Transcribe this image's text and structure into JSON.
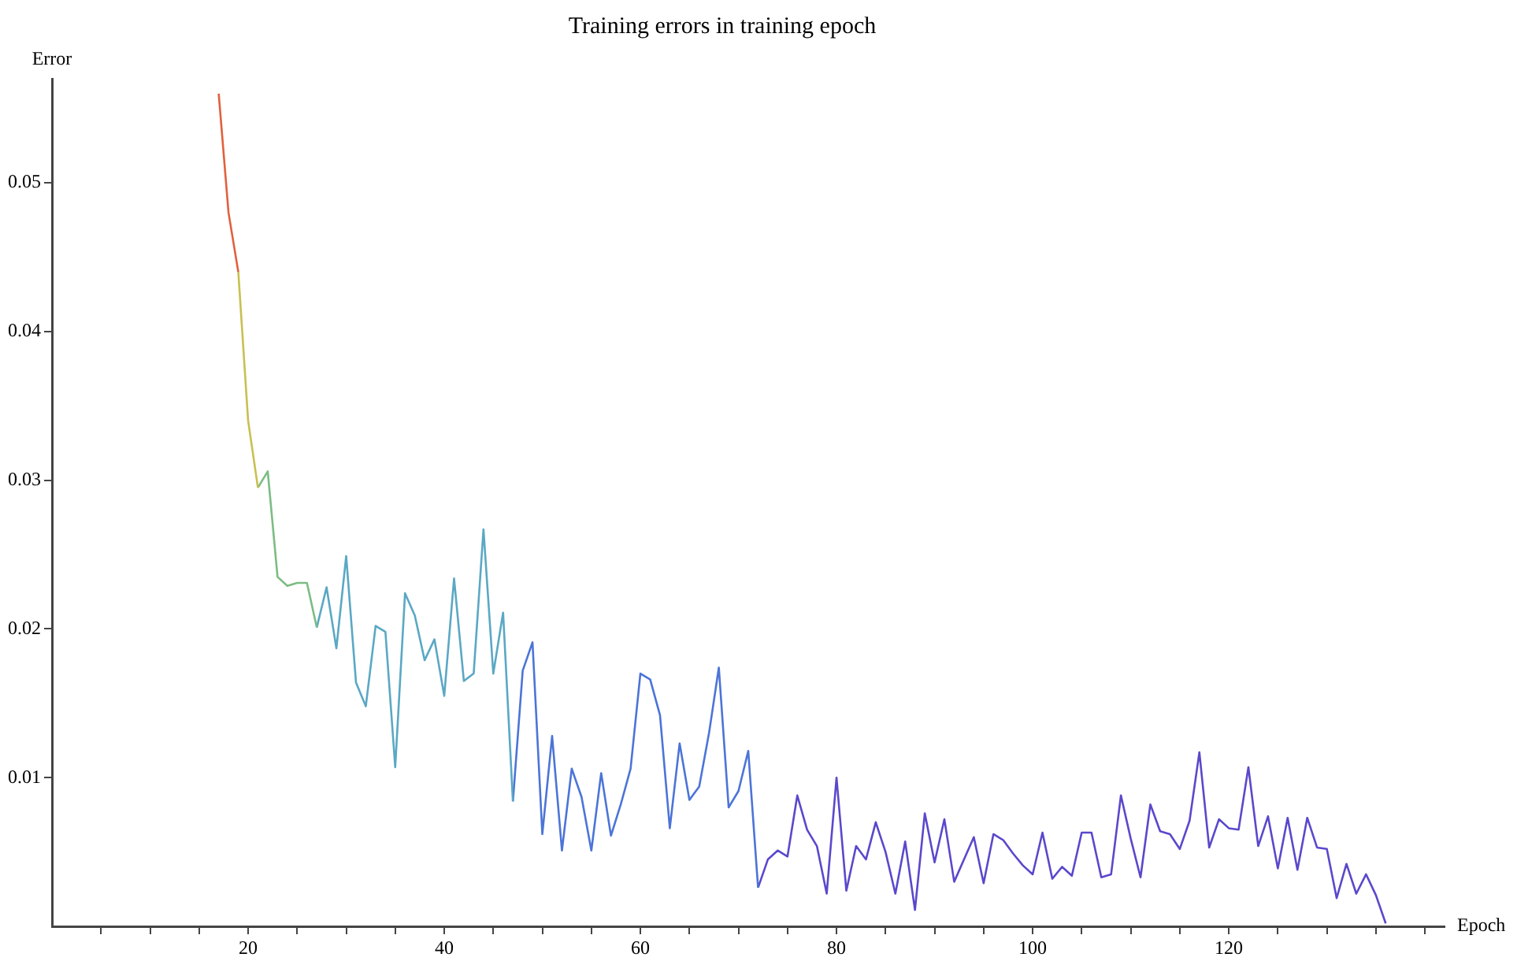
{
  "chart_data": {
    "type": "line",
    "title": "Training errors in training epoch",
    "xlabel": "Epoch",
    "ylabel": "Error",
    "series": [
      {
        "color": "#e2603c",
        "x": [
          17,
          18,
          19
        ],
        "values": [
          0.056,
          0.048,
          0.044
        ]
      },
      {
        "color": "#c8c050",
        "x": [
          19,
          20,
          21
        ],
        "values": [
          0.044,
          0.034,
          0.0295
        ]
      },
      {
        "color": "#7cbc84",
        "x": [
          21,
          22,
          23,
          24,
          25,
          26,
          27
        ],
        "values": [
          0.0295,
          0.0306,
          0.0235,
          0.0229,
          0.0231,
          0.0231,
          0.0201
        ]
      },
      {
        "color": "#5aa8c4",
        "x": [
          27,
          28,
          29,
          30,
          31,
          32,
          33,
          34,
          35,
          36,
          37,
          38,
          39,
          40,
          41,
          42,
          43,
          44,
          45,
          46,
          47
        ],
        "values": [
          0.0201,
          0.0228,
          0.0187,
          0.0249,
          0.0164,
          0.0148,
          0.0202,
          0.0198,
          0.0107,
          0.0224,
          0.0209,
          0.0179,
          0.0193,
          0.0155,
          0.0234,
          0.0165,
          0.017,
          0.0267,
          0.017,
          0.0211,
          0.0084
        ]
      },
      {
        "color": "#4c74d8",
        "x": [
          47,
          48,
          49,
          50,
          51,
          52,
          53,
          54,
          55,
          56,
          57,
          58,
          59,
          60,
          61,
          62,
          63,
          64,
          65,
          66,
          67,
          68,
          69,
          70,
          71,
          72
        ],
        "values": [
          0.0084,
          0.0172,
          0.0191,
          0.0062,
          0.0128,
          0.0051,
          0.0106,
          0.0087,
          0.0051,
          0.0103,
          0.0061,
          0.0082,
          0.0106,
          0.017,
          0.0166,
          0.0142,
          0.0066,
          0.0123,
          0.0085,
          0.0094,
          0.013,
          0.0174,
          0.008,
          0.0091,
          0.0118,
          0.0026
        ]
      },
      {
        "color": "#5a48cc",
        "x": [
          72,
          73,
          74,
          75,
          76,
          77,
          78,
          79,
          80,
          81,
          82,
          83,
          84,
          85,
          86,
          87,
          88,
          89,
          90,
          91,
          92,
          93,
          94,
          95,
          96,
          97,
          98,
          99,
          100,
          101,
          102,
          103,
          104,
          105,
          106,
          107,
          108,
          109,
          110,
          111,
          112,
          113,
          114,
          115,
          116,
          117,
          118,
          119,
          120,
          121,
          122,
          123,
          124,
          125,
          126,
          127,
          128,
          129,
          130,
          131,
          132,
          133,
          134,
          135,
          136
        ],
        "values": [
          0.0026,
          0.0045,
          0.0051,
          0.0047,
          0.0088,
          0.0065,
          0.0054,
          0.0022,
          0.01,
          0.0024,
          0.0054,
          0.0045,
          0.007,
          0.005,
          0.0022,
          0.0057,
          0.0011,
          0.0076,
          0.0043,
          0.0072,
          0.003,
          0.0045,
          0.006,
          0.0029,
          0.0062,
          0.0058,
          0.0049,
          0.0041,
          0.0035,
          0.0063,
          0.0032,
          0.004,
          0.0034,
          0.0063,
          0.0063,
          0.0033,
          0.0035,
          0.0088,
          0.0059,
          0.0033,
          0.0082,
          0.0064,
          0.0062,
          0.0052,
          0.0071,
          0.0117,
          0.0053,
          0.0072,
          0.0066,
          0.0065,
          0.0107,
          0.0054,
          0.0074,
          0.0039,
          0.0073,
          0.0038,
          0.0073,
          0.0053,
          0.0052,
          0.0019,
          0.0042,
          0.0022,
          0.0035,
          0.0021,
          0.0002
        ]
      }
    ],
    "xlim": [
      0,
      142
    ],
    "ylim": [
      0,
      0.057
    ],
    "xticks": [
      {
        "value": 5,
        "label": null
      },
      {
        "value": 10,
        "label": null
      },
      {
        "value": 15,
        "label": null
      },
      20,
      {
        "value": 25,
        "label": null
      },
      {
        "value": 30,
        "label": null
      },
      {
        "value": 35,
        "label": null
      },
      40,
      {
        "value": 45,
        "label": null
      },
      {
        "value": 50,
        "label": null
      },
      {
        "value": 55,
        "label": null
      },
      60,
      {
        "value": 65,
        "label": null
      },
      {
        "value": 70,
        "label": null
      },
      {
        "value": 75,
        "label": null
      },
      80,
      {
        "value": 85,
        "label": null
      },
      {
        "value": 90,
        "label": null
      },
      {
        "value": 95,
        "label": null
      },
      100,
      {
        "value": 105,
        "label": null
      },
      {
        "value": 110,
        "label": null
      },
      {
        "value": 115,
        "label": null
      },
      120,
      {
        "value": 125,
        "label": null
      },
      {
        "value": 130,
        "label": null
      },
      {
        "value": 135,
        "label": null
      },
      {
        "value": 140,
        "label": null
      }
    ],
    "yticks": [
      0.01,
      0.02,
      0.03,
      0.04,
      0.05
    ],
    "grid": false,
    "legend": false,
    "marker": "none",
    "line_style": "solid"
  }
}
